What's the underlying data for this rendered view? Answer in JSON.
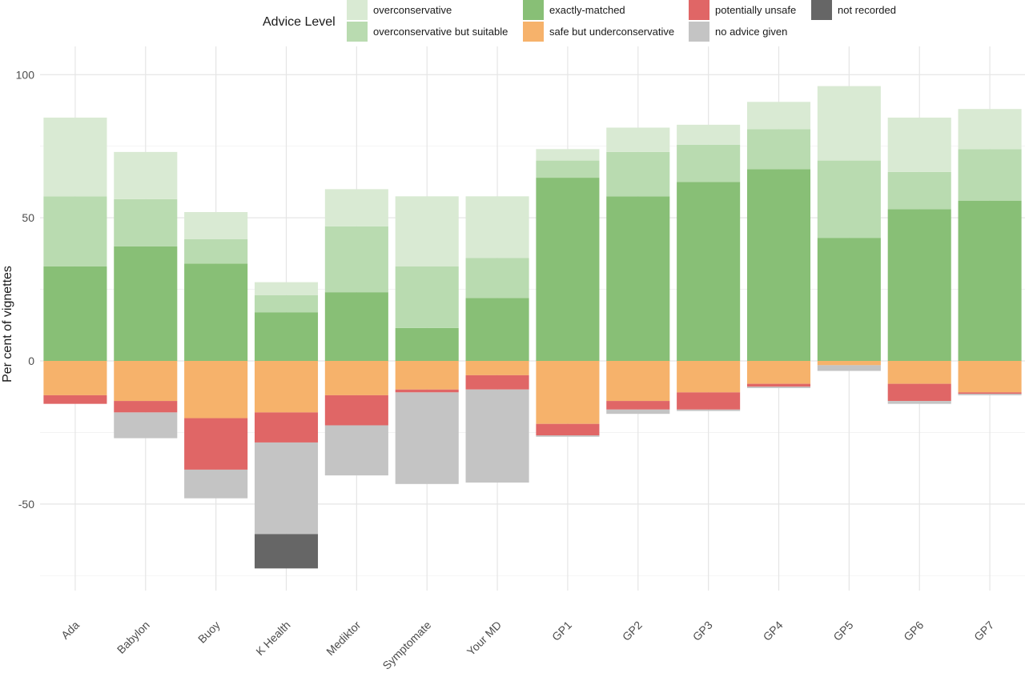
{
  "chart_data": {
    "type": "bar",
    "stacked": true,
    "diverging": true,
    "ylabel": "Per cent of vignettes",
    "ylim": [
      -77,
      105
    ],
    "yticks": [
      -50,
      0,
      50,
      100
    ],
    "grid": true,
    "legend": {
      "title": "Advice Level",
      "position": "top",
      "entries": [
        {
          "key": "oc",
          "label": "overconservative",
          "color": "#d9ead3"
        },
        {
          "key": "ocs",
          "label": "overconservative but suitable",
          "color": "#b9dbb0"
        },
        {
          "key": "em",
          "label": "exactly-matched",
          "color": "#88bf76"
        },
        {
          "key": "su",
          "label": "safe but underconservative",
          "color": "#f6b26b"
        },
        {
          "key": "pu",
          "label": "potentially unsafe",
          "color": "#e06666"
        },
        {
          "key": "na",
          "label": "no advice given",
          "color": "#c4c4c4"
        },
        {
          "key": "nr",
          "label": "not recorded",
          "color": "#666666"
        }
      ]
    },
    "categories": [
      "Ada",
      "Babylon",
      "Buoy",
      "K Health",
      "Mediktor",
      "Symptomate",
      "Your MD",
      "GP1",
      "GP2",
      "GP3",
      "GP4",
      "GP5",
      "GP6",
      "GP7"
    ],
    "positive_order": [
      "em",
      "ocs",
      "oc"
    ],
    "negative_order": [
      "su",
      "pu",
      "na",
      "nr"
    ],
    "series": [
      {
        "key": "em",
        "name": "exactly-matched",
        "values": [
          33,
          40,
          34,
          17,
          24,
          11.5,
          22,
          64,
          57.5,
          62.5,
          67,
          43,
          53,
          56
        ]
      },
      {
        "key": "ocs",
        "name": "overconservative but suitable",
        "values": [
          24.5,
          16.5,
          8.5,
          6,
          23,
          21.5,
          14,
          6,
          15.5,
          13,
          14,
          27,
          13,
          18
        ]
      },
      {
        "key": "oc",
        "name": "overconservative",
        "values": [
          27.5,
          16.5,
          9.5,
          4.5,
          13,
          24.5,
          21.5,
          4,
          8.5,
          7,
          9.5,
          26,
          19,
          14
        ]
      },
      {
        "key": "su",
        "name": "safe but underconservative",
        "values": [
          -12,
          -14,
          -20,
          -18,
          -12,
          -10,
          -5,
          -22,
          -14,
          -11,
          -8,
          -1.5,
          -8,
          -11
        ]
      },
      {
        "key": "pu",
        "name": "potentially unsafe",
        "values": [
          -3,
          -4,
          -18,
          -10.5,
          -10.5,
          -1,
          -5,
          -4,
          -3,
          -6,
          -1,
          0,
          -6,
          -0.5
        ]
      },
      {
        "key": "na",
        "name": "no advice given",
        "values": [
          0,
          -9,
          -10,
          -32,
          -17.5,
          -32,
          -32.5,
          -0.5,
          -1.5,
          -0.5,
          -0.5,
          -2,
          -1,
          -0.5
        ]
      },
      {
        "key": "nr",
        "name": "not recorded",
        "values": [
          0,
          0,
          0,
          -12,
          0,
          0,
          0,
          0,
          0,
          0,
          0,
          0,
          0,
          0
        ]
      }
    ]
  }
}
